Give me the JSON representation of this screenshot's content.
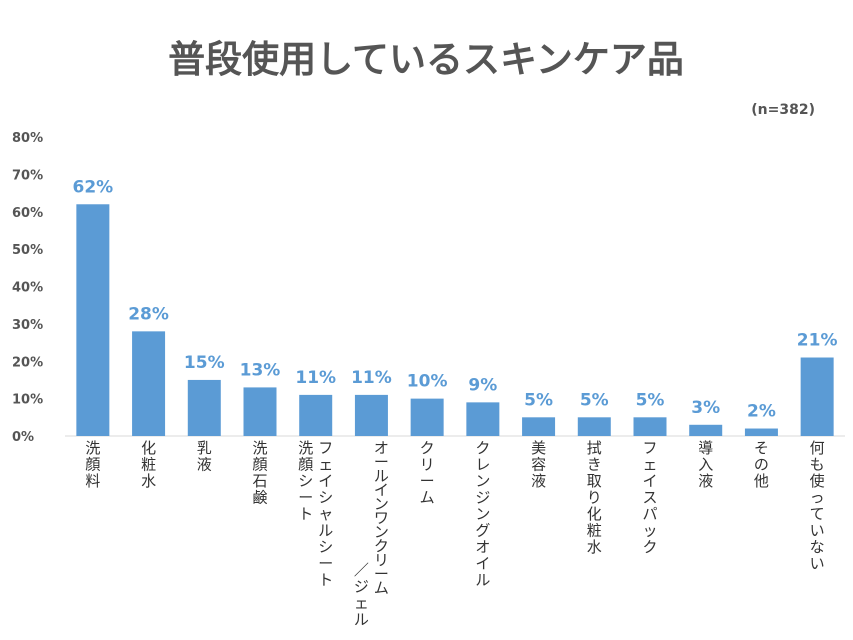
{
  "chart_data": {
    "type": "bar",
    "title": "普段使用しているスキンケア品",
    "note": "(n=382)",
    "xlabel": "",
    "ylabel": "",
    "ylim": [
      0,
      80
    ],
    "yticks": [
      "0%",
      "10%",
      "20%",
      "30%",
      "40%",
      "50%",
      "60%",
      "70%",
      "80%"
    ],
    "grid": false,
    "legend": "none",
    "bar_color": "#5b9bd5",
    "label_color": "#5b9bd5",
    "categories": [
      [
        "洗顔料"
      ],
      [
        "化粧水"
      ],
      [
        "乳液"
      ],
      [
        "洗顔石鹸"
      ],
      [
        "フェイシャルシート",
        "洗顔シート"
      ],
      [
        "オールインワンクリーム",
        "／ジェル"
      ],
      [
        "クリーム"
      ],
      [
        "クレンジングオイル"
      ],
      [
        "美容液"
      ],
      [
        "拭き取り化粧水"
      ],
      [
        "フェイスパック"
      ],
      [
        "導入液"
      ],
      [
        "その他"
      ],
      [
        "何も使っていない"
      ]
    ],
    "values": [
      62,
      28,
      15,
      13,
      11,
      11,
      10,
      9,
      5,
      5,
      5,
      3,
      2,
      21
    ],
    "value_labels": [
      "62%",
      "28%",
      "15%",
      "13%",
      "11%",
      "11%",
      "10%",
      "9%",
      "5%",
      "5%",
      "5%",
      "3%",
      "2%",
      "21%"
    ]
  }
}
